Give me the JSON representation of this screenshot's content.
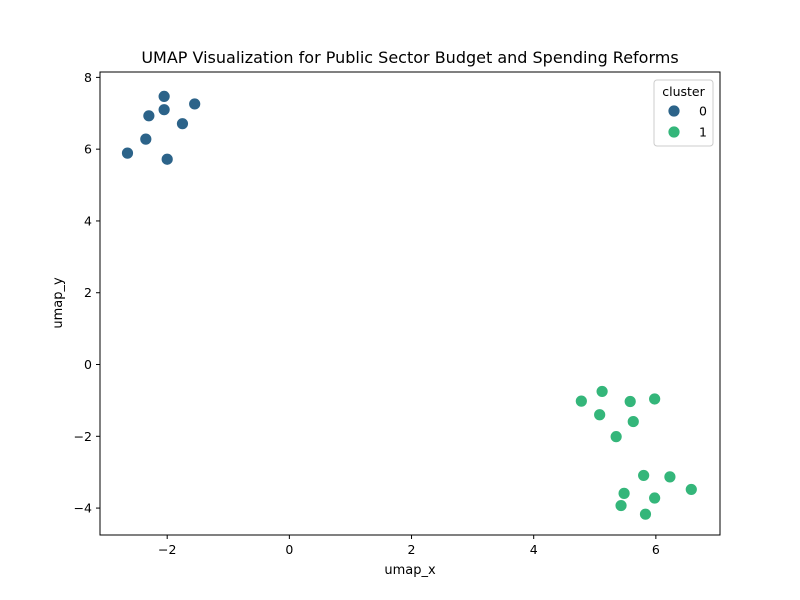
{
  "chart_data": {
    "type": "scatter",
    "title": "UMAP Visualization for Public Sector Budget and Spending Reforms",
    "xlabel": "umap_x",
    "ylabel": "umap_y",
    "xlim": [
      -3.1,
      7.05
    ],
    "ylim": [
      -4.75,
      8.15
    ],
    "xticks": [
      -2,
      0,
      2,
      4,
      6
    ],
    "yticks": [
      -4,
      -2,
      0,
      2,
      4,
      6,
      8
    ],
    "grid": false,
    "legend": {
      "title": "cluster",
      "placement": "top-right"
    },
    "series": [
      {
        "name": "0",
        "color": "#2c6389",
        "points": [
          {
            "x": -2.05,
            "y": 7.47
          },
          {
            "x": -1.55,
            "y": 7.26
          },
          {
            "x": -2.05,
            "y": 7.1
          },
          {
            "x": -2.3,
            "y": 6.93
          },
          {
            "x": -1.75,
            "y": 6.71
          },
          {
            "x": -2.35,
            "y": 6.28
          },
          {
            "x": -2.65,
            "y": 5.89
          },
          {
            "x": -2.0,
            "y": 5.72
          }
        ]
      },
      {
        "name": "1",
        "color": "#34b67a",
        "points": [
          {
            "x": 5.12,
            "y": -0.75
          },
          {
            "x": 4.78,
            "y": -1.02
          },
          {
            "x": 5.58,
            "y": -1.03
          },
          {
            "x": 5.98,
            "y": -0.96
          },
          {
            "x": 5.08,
            "y": -1.4
          },
          {
            "x": 5.63,
            "y": -1.59
          },
          {
            "x": 5.35,
            "y": -2.01
          },
          {
            "x": 5.8,
            "y": -3.09
          },
          {
            "x": 6.23,
            "y": -3.13
          },
          {
            "x": 6.58,
            "y": -3.48
          },
          {
            "x": 5.48,
            "y": -3.59
          },
          {
            "x": 5.98,
            "y": -3.72
          },
          {
            "x": 5.43,
            "y": -3.93
          },
          {
            "x": 5.83,
            "y": -4.17
          }
        ]
      }
    ]
  }
}
